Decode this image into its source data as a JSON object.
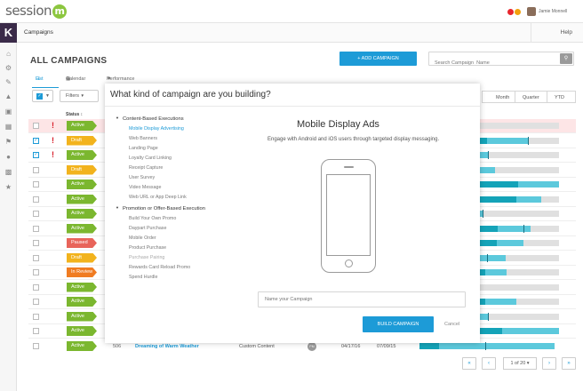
{
  "topbar": {
    "logo_text": "session",
    "logo_mark": "m",
    "user_name": "Jamie Monnell",
    "notification_colors": [
      "#e8262d",
      "#f2a10d"
    ]
  },
  "sidebar": {
    "brand_letter": "K",
    "icons": [
      "home-icon",
      "gears-icon",
      "wrench-icon",
      "megaphone-icon",
      "briefcase-icon",
      "tickets-icon",
      "flag-icon",
      "users-icon",
      "bar-chart-icon",
      "trophy-icon"
    ]
  },
  "subheader": {
    "title": "Campaigns",
    "help": "Help"
  },
  "page": {
    "title": "ALL CAMPAIGNS",
    "add_button": "+ ADD CAMPAIGN",
    "search_placeholder": "Search Campaign  Name",
    "view_tabs": [
      "List",
      "Calendar",
      "Performance"
    ],
    "filters_label": "Filters",
    "status_header": "Status ↕",
    "period_tabs": [
      "Month",
      "Quarter",
      "YTD"
    ]
  },
  "rows": [
    {
      "checked": false,
      "warn": true,
      "status": "Active",
      "color": "#7bb72f",
      "highlight": true,
      "dark": 0,
      "fill": 0,
      "tick": null,
      "bg": 1.0
    },
    {
      "checked": true,
      "warn": true,
      "status": "Draft",
      "color": "#f2b31d",
      "highlight": false,
      "dark": 0.12,
      "fill": 0.62,
      "tick": 0.62,
      "bg": 1.0
    },
    {
      "checked": true,
      "warn": true,
      "status": "Active",
      "color": "#7bb72f",
      "highlight": false,
      "dark": 0,
      "fill": 0.13,
      "tick": 0.13,
      "bg": 1.0
    },
    {
      "checked": false,
      "warn": false,
      "status": "Draft",
      "color": "#f2b31d",
      "highlight": false,
      "dark": 0,
      "fill": 0.22,
      "tick": null,
      "bg": 1.0
    },
    {
      "checked": false,
      "warn": false,
      "status": "Active",
      "color": "#7bb72f",
      "highlight": false,
      "dark": 0.5,
      "fill": 1.0,
      "tick": null,
      "bg": 1.0
    },
    {
      "checked": false,
      "warn": false,
      "status": "Active",
      "color": "#7bb72f",
      "highlight": false,
      "dark": 0.48,
      "fill": 0.78,
      "tick": null,
      "bg": 1.0
    },
    {
      "checked": false,
      "warn": false,
      "status": "Active",
      "color": "#7bb72f",
      "highlight": false,
      "dark": 0,
      "fill": 0.07,
      "tick": 0.07,
      "bg": 1.0
    },
    {
      "checked": false,
      "warn": false,
      "status": "Active",
      "color": "#7bb72f",
      "highlight": false,
      "dark": 0.25,
      "fill": 0.65,
      "tick": 0.57,
      "bg": 1.0
    },
    {
      "checked": false,
      "warn": false,
      "status": "Paused",
      "color": "#e8645a",
      "highlight": false,
      "dark": 0.24,
      "fill": 0.56,
      "tick": null,
      "bg": 1.0
    },
    {
      "checked": false,
      "warn": false,
      "status": "Draft",
      "color": "#f2b31d",
      "highlight": false,
      "dark": 0,
      "fill": 0.35,
      "tick": 0.12,
      "bg": 1.0
    },
    {
      "checked": false,
      "warn": false,
      "status": "In Review",
      "color": "#f07c22",
      "highlight": false,
      "dark": 0.1,
      "fill": 0.36,
      "tick": null,
      "bg": 1.0
    },
    {
      "checked": false,
      "warn": false,
      "status": "Active",
      "color": "#7bb72f",
      "highlight": false,
      "dark": 0,
      "fill": 0,
      "tick": null,
      "bg": 1.0
    },
    {
      "checked": false,
      "warn": false,
      "status": "Active",
      "color": "#7bb72f",
      "highlight": false,
      "dark": 0.1,
      "fill": 0.48,
      "tick": null,
      "bg": 1.0
    },
    {
      "checked": false,
      "warn": false,
      "status": "Active",
      "color": "#7bb72f",
      "highlight": false,
      "dark": 0,
      "fill": 0.13,
      "tick": 0.13,
      "bg": 1.0
    },
    {
      "checked": false,
      "warn": false,
      "status": "Active",
      "color": "#7bb72f",
      "highlight": false,
      "dark": 0.3,
      "fill": 1.0,
      "tick": null,
      "bg": 1.0
    }
  ],
  "last_row": {
    "status": "Active",
    "id": "506",
    "name": "Dreaming of Warm Weather",
    "type": "Custom Content",
    "owner_initials": "PM",
    "start": "04/17/16",
    "end": "07/09/15"
  },
  "pagination": {
    "first": "«",
    "prev": "‹",
    "of": "1 of 20 ▾",
    "next": "›",
    "last": "»"
  },
  "modal": {
    "title": "What kind of campaign are you building?",
    "categories": [
      {
        "title": "Content-Based Executions",
        "options": [
          "Mobile Display Advertising",
          "Web Banners",
          "Landing Page",
          "Loyalty Card Linking",
          "Receipt Capture",
          "User Survey",
          "Video Message",
          "Web URL or App Deep Link"
        ]
      },
      {
        "title": "Promotion or Offer-Based Execution",
        "options": [
          "Build Your Own Promo",
          "Daypart Purchase",
          "Mobile Order",
          "Product Purchase",
          "Purchase Pairing",
          "Rewards Card Reload Promo",
          "Spend Hurdle"
        ]
      }
    ],
    "selected_option": "Mobile Display Advertising",
    "preview_title": "Mobile Display Ads",
    "preview_desc": "Engage with Android and iOS users through targeted display messaging.",
    "name_placeholder": "Name your Campaign",
    "build_button": "BUILD CAMPAIGN",
    "cancel": "Cancel"
  }
}
